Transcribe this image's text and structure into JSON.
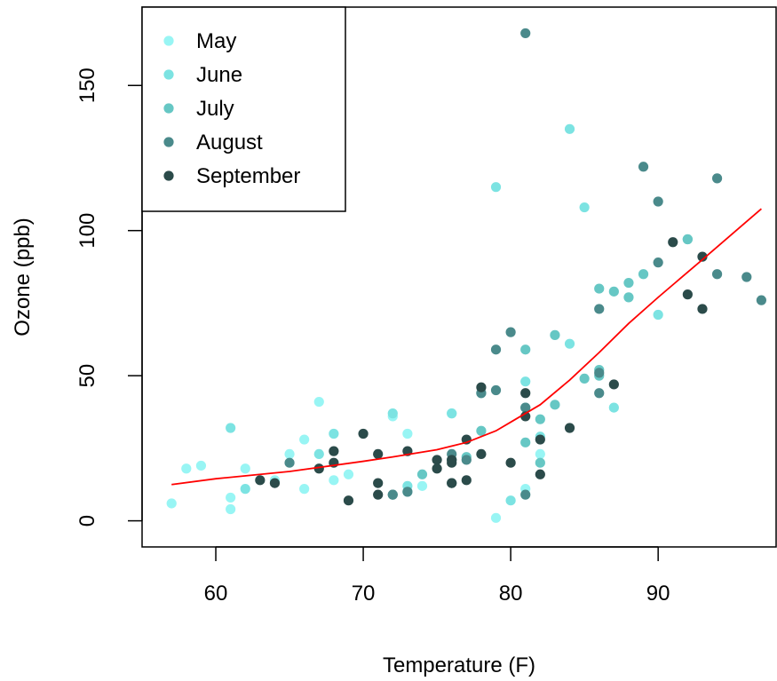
{
  "chart_data": {
    "type": "scatter",
    "xlabel": "Temperature (F)",
    "ylabel": "Ozone (ppb)",
    "xlim": [
      55,
      98
    ],
    "ylim": [
      -9,
      177
    ],
    "x_ticks": [
      60,
      70,
      80,
      90
    ],
    "y_ticks": [
      0,
      50,
      100,
      150
    ],
    "x_tick_labels": [
      "60",
      "70",
      "80",
      "90"
    ],
    "y_tick_labels": [
      "0",
      "50",
      "100",
      "150"
    ],
    "grid": false,
    "legend": {
      "placement": "top-left",
      "entries": [
        "May",
        "June",
        "July",
        "August",
        "September"
      ]
    },
    "series": [
      {
        "name": "May",
        "color": "#98F5F4",
        "x": [
          67,
          72,
          74,
          62,
          66,
          65,
          59,
          61,
          69,
          66,
          68,
          58,
          64,
          57,
          73,
          81,
          79,
          76,
          82,
          61
        ],
        "y": [
          41,
          36,
          12,
          18,
          28,
          23,
          19,
          8,
          16,
          11,
          14,
          18,
          14,
          6,
          30,
          11,
          1,
          37,
          23,
          4
        ]
      },
      {
        "name": "June",
        "color": "#7CE3E2",
        "x": [
          61,
          79,
          90,
          72,
          73,
          84,
          85,
          81,
          82,
          87,
          73,
          76,
          62,
          68,
          67,
          78,
          80,
          84
        ],
        "y": [
          32,
          115,
          71,
          37,
          10,
          135,
          108,
          48,
          29,
          39,
          12,
          37,
          11,
          30,
          23,
          44,
          7,
          61
        ]
      },
      {
        "name": "July",
        "color": "#66C7C4",
        "x": [
          92,
          89,
          88,
          88,
          86,
          83,
          81,
          81,
          82,
          86,
          85,
          87,
          86,
          83,
          74,
          77,
          82,
          78,
          81,
          92
        ],
        "y": [
          97,
          85,
          82,
          77,
          80,
          64,
          59,
          39,
          35,
          52,
          49,
          79,
          50,
          40,
          16,
          22,
          20,
          31,
          27,
          97
        ]
      },
      {
        "name": "August",
        "color": "#4A8A8B",
        "x": [
          81,
          89,
          90,
          86,
          94,
          96,
          97,
          94,
          90,
          86,
          86,
          81,
          80,
          79,
          79,
          78,
          77,
          76,
          76,
          76,
          72,
          72,
          65,
          73,
          81
        ],
        "y": [
          168,
          122,
          110,
          73,
          118,
          84,
          76,
          85,
          89,
          51,
          44,
          9,
          65,
          59,
          45,
          44,
          21,
          21,
          13,
          23,
          9,
          9,
          20,
          10,
          39
        ]
      },
      {
        "name": "September",
        "color": "#2B4B4A",
        "x": [
          91,
          92,
          93,
          93,
          87,
          84,
          80,
          78,
          75,
          73,
          81,
          76,
          77,
          71,
          71,
          78,
          67,
          76,
          68,
          82,
          64,
          71,
          81,
          69,
          63,
          70,
          77,
          75,
          76,
          68,
          82
        ],
        "y": [
          96,
          78,
          73,
          91,
          47,
          32,
          20,
          23,
          21,
          24,
          44,
          21,
          28,
          9,
          13,
          46,
          18,
          13,
          24,
          16,
          13,
          23,
          36,
          7,
          14,
          30,
          14,
          18,
          20,
          20,
          28
        ]
      }
    ],
    "trend_line": {
      "color": "#FF0000",
      "x": [
        57,
        60,
        65,
        70,
        72,
        75,
        77,
        79,
        80,
        82,
        84,
        86,
        88,
        90,
        93,
        97
      ],
      "y": [
        12.5,
        14.5,
        17,
        20.5,
        22,
        24.5,
        27,
        31,
        34,
        40,
        48.5,
        58,
        68,
        77,
        90,
        107.5
      ]
    }
  }
}
